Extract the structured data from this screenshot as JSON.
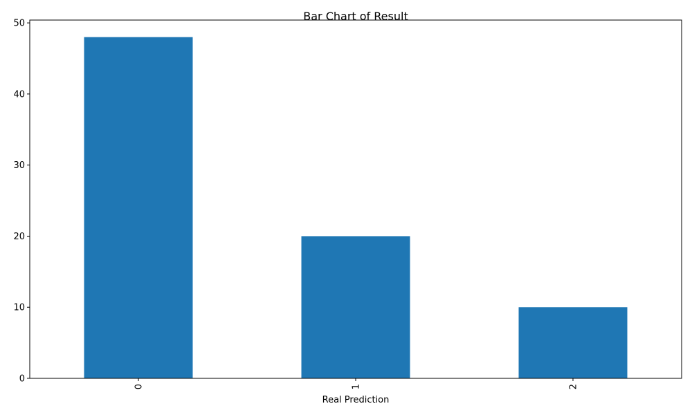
{
  "chart_data": {
    "type": "bar",
    "title": "Bar Chart of Result",
    "xlabel": "Real Prediction",
    "ylabel": "",
    "categories": [
      "0",
      "1",
      "2"
    ],
    "values": [
      48,
      20,
      10
    ],
    "ylim": [
      0,
      50.4
    ],
    "yticks": [
      "0",
      "10",
      "20",
      "30",
      "40",
      "50"
    ],
    "xtick_rotation": "vertical",
    "grid": false,
    "legend": "none",
    "colors": {
      "bar": "#1f77b4",
      "axis": "#000000",
      "background": "#ffffff"
    }
  }
}
